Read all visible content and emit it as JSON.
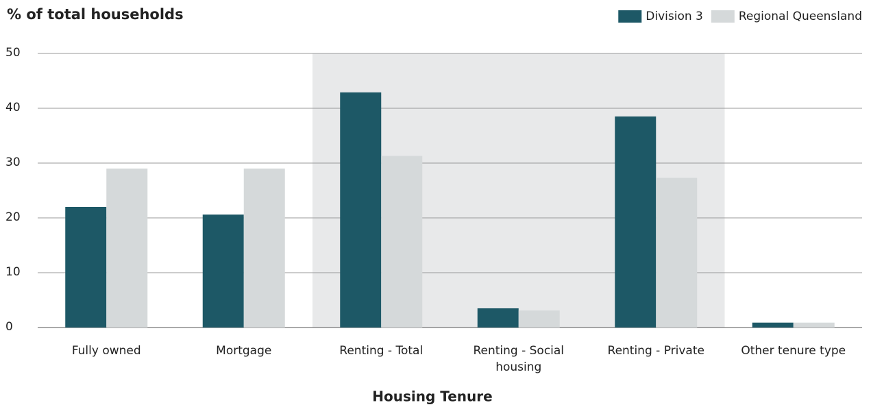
{
  "chart_data": {
    "type": "bar",
    "title": "% of total households",
    "x_label": "Housing Tenure",
    "categories": [
      "Fully owned",
      "Mortgage",
      "Renting - Total",
      "Renting - Social housing",
      "Renting - Private",
      "Other tenure type"
    ],
    "series": [
      {
        "name": "Division 3",
        "color": "#1d5866",
        "values": [
          22.0,
          20.6,
          42.9,
          3.5,
          38.5,
          0.9
        ]
      },
      {
        "name": "Regional Queensland",
        "color": "#d5d9da",
        "values": [
          29.0,
          29.0,
          31.3,
          3.1,
          27.3,
          0.9
        ]
      }
    ],
    "ylim": [
      0,
      50
    ],
    "yticks": [
      0,
      10,
      20,
      30,
      40,
      50
    ],
    "grid": true,
    "highlight_range": [
      2,
      4
    ],
    "highlight_color": "#e8e9ea",
    "legend": "top-right"
  }
}
